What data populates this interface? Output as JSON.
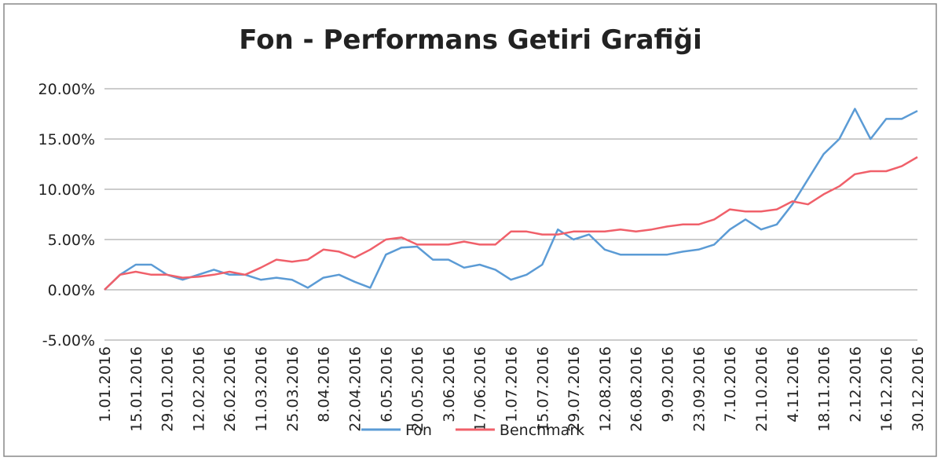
{
  "chart_data": {
    "type": "line",
    "title": "Fon - Performans Getiri Grafiği",
    "categories": [
      "1.01.2016",
      null,
      "15.01.2016",
      null,
      "29.01.2016",
      null,
      "12.02.2016",
      null,
      "26.02.2016",
      null,
      "11.03.2016",
      null,
      "25.03.2016",
      null,
      "8.04.2016",
      null,
      "22.04.2016",
      null,
      "6.05.2016",
      null,
      "20.05.2016",
      null,
      "3.06.2016",
      null,
      "17.06.2016",
      null,
      "1.07.2016",
      null,
      "15.07.2016",
      null,
      "29.07.2016",
      null,
      "12.08.2016",
      null,
      "26.08.2016",
      null,
      "9.09.2016",
      null,
      "23.09.2016",
      null,
      "7.10.2016",
      null,
      "21.10.2016",
      null,
      "4.11.2016",
      null,
      "18.11.2016",
      null,
      "2.12.2016",
      null,
      "16.12.2016",
      null,
      "30.12.2016"
    ],
    "series": [
      {
        "name": "Fon",
        "color": "#5b9bd5",
        "values": [
          0,
          1.5,
          2.5,
          2.5,
          1.5,
          1.0,
          1.5,
          2.0,
          1.5,
          1.5,
          1.0,
          1.2,
          1.0,
          0.2,
          1.2,
          1.5,
          0.8,
          0.2,
          3.5,
          4.2,
          4.3,
          3.0,
          3.0,
          2.2,
          2.5,
          2.0,
          1.0,
          1.5,
          2.5,
          6.0,
          5.0,
          5.5,
          4.0,
          3.5,
          3.5,
          3.5,
          3.5,
          3.8,
          4.0,
          4.5,
          6.0,
          7.0,
          6.0,
          6.5,
          8.5,
          11.0,
          13.5,
          15.0,
          18.0,
          15.0,
          17.0,
          17.0,
          17.8
        ]
      },
      {
        "name": "Benchmark",
        "color": "#f0606a",
        "values": [
          0,
          1.5,
          1.8,
          1.5,
          1.5,
          1.2,
          1.3,
          1.5,
          1.8,
          1.5,
          2.2,
          3.0,
          2.8,
          3.0,
          4.0,
          3.8,
          3.2,
          4.0,
          5.0,
          5.2,
          4.5,
          4.5,
          4.5,
          4.8,
          4.5,
          4.5,
          5.8,
          5.8,
          5.5,
          5.5,
          5.8,
          5.8,
          5.8,
          6.0,
          5.8,
          6.0,
          6.3,
          6.5,
          6.5,
          7.0,
          8.0,
          7.8,
          7.8,
          8.0,
          8.8,
          8.5,
          9.5,
          10.3,
          11.5,
          11.8,
          11.8,
          12.3,
          13.2
        ]
      }
    ],
    "ylim": [
      -5,
      20
    ],
    "yticks": [
      {
        "value": -5,
        "label": "-5.00%"
      },
      {
        "value": 0,
        "label": "0.00%"
      },
      {
        "value": 5,
        "label": "5.00%"
      },
      {
        "value": 10,
        "label": "10.00%"
      },
      {
        "value": 15,
        "label": "15.00%"
      },
      {
        "value": 20,
        "label": "20.00%"
      }
    ],
    "grid": true,
    "legend": "bottom"
  }
}
